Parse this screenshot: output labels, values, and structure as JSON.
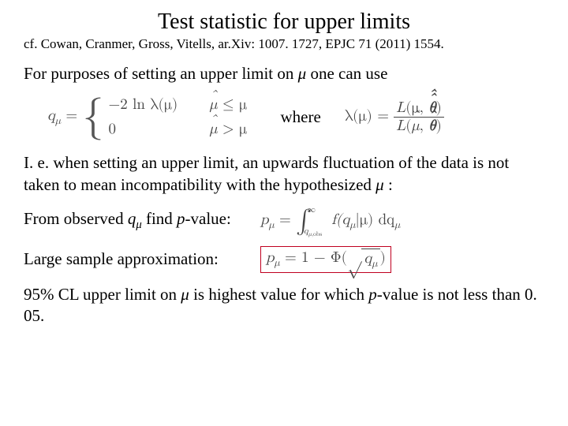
{
  "title": "Test statistic for upper limits",
  "citation": "cf. Cowan, Cranmer, Gross, Vitells, ar.Xiv: 1007. 1727, EPJC 71 (2011) 1554.",
  "line1_a": "For purposes of setting an upper limit on ",
  "line1_mu": "μ",
  "line1_b": " one can use",
  "where": "where",
  "line2": "I. e. when setting an upper limit, an upwards fluctuation of the data is not taken to mean incompatibility with the hypothesized ",
  "line2_mu": "μ",
  "line2_end": " :",
  "line3_a": "From observed ",
  "line3_q": "q",
  "line3_qsub": "μ",
  "line3_b": " find ",
  "line3_p": "p",
  "line3_c": "-value:",
  "line4": "Large sample approximation:",
  "line5_a": "95% CL upper limit on ",
  "line5_mu": "μ",
  "line5_b": " is highest value for which ",
  "line5_p": "p",
  "line5_c": "-value is not less than 0. 05.",
  "math": {
    "qmu": "q",
    "mu_sub": "μ",
    "eq": " = ",
    "case1a": "−2 ln λ(μ)",
    "case1b_hat": "μ",
    "case1b_rel": " ≤ μ",
    "case2a": "0",
    "case2b_hat": "μ",
    "case2b_rel": " > μ",
    "lambda": "λ(μ) = ",
    "L": "L",
    "num_args_a": "(μ, ",
    "theta": "θ",
    "num_args_b": ")",
    "den_args_a": "(",
    "den_args_b": ", ",
    "den_args_c": ")",
    "pmu": "p",
    "intro": " = ",
    "f": "f(q",
    "fmid": "|μ) dq",
    "int_lo_a": "q",
    "int_lo_b": ",obs",
    "int_up": "∞",
    "approx": " = 1 − Φ",
    "sqrt_in_a": "q"
  },
  "colors": {
    "box_border": "#c00020",
    "text": "#000000",
    "math": "#444444",
    "bg": "#ffffff"
  }
}
